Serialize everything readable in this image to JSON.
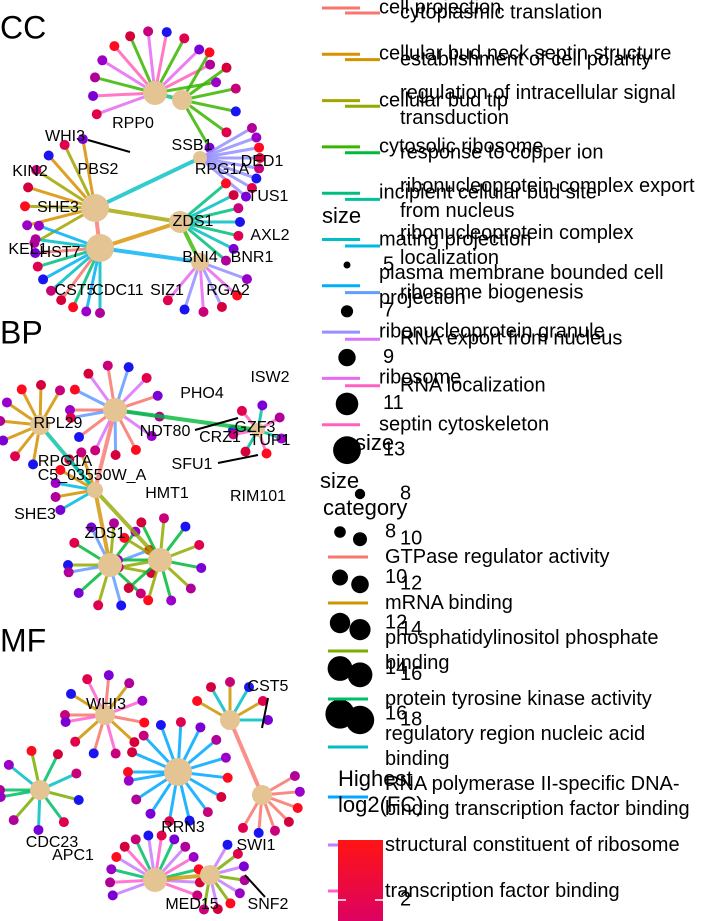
{
  "panels": [
    {
      "title": "CC",
      "gene_labels": [
        "WHI3",
        "RPP0",
        "SSB1",
        "RPG1A",
        "DED1",
        "KIN2",
        "PBS2",
        "SHE3",
        "TUS1",
        "ZDS1",
        "AXL2",
        "KEL1",
        "HST7",
        "BNI4",
        "BNR1",
        "CST5",
        "CDC11",
        "SIZ1",
        "RGA2"
      ],
      "categories": [
        "cell projection",
        "cellular bud neck septin structure",
        "cellular bud tip",
        "cytosolic ribosome",
        "incipient cellular bud site",
        "mating projection",
        "plasma membrane bounded cell projection",
        "ribonucleoprotein granule",
        "ribosome",
        "septin cytoskeleton"
      ],
      "colors": [
        "#F8766D",
        "#D89000",
        "#A3A500",
        "#39B600",
        "#00BF7D",
        "#00BFC4",
        "#00B0F6",
        "#9590FF",
        "#E76BF3",
        "#FF62BC"
      ],
      "size_legend": {
        "title": "size",
        "values": [
          5,
          7,
          9,
          11,
          13
        ]
      }
    },
    {
      "title": "BP",
      "gene_labels": [
        "RPL29",
        "PHO4",
        "ISW2",
        "NDT80",
        "GZF3",
        "CRZ1",
        "TUP1",
        "SFU1",
        "RPG1A",
        "C5_03550W_A",
        "HMT1",
        "RIM101",
        "SHE3",
        "ZDS1"
      ],
      "categories": [
        "cytoplasmic translation",
        "establishment of cell polarity",
        "regulation of intracellular signal transduction",
        "response to copper ion",
        "ribonucleoprotein complex export from nucleus",
        "ribonucleoprotein complex localization",
        "ribosome biogenesis",
        "RNA export from nucleus",
        "RNA localization"
      ],
      "colors": [
        "#F8766D",
        "#D39200",
        "#93AA00",
        "#00BA38",
        "#00C19F",
        "#00B9E3",
        "#619CFF",
        "#DB72FB",
        "#FF61C3"
      ],
      "size_legend": {
        "title": "size",
        "values": [
          8,
          10,
          12,
          14,
          16,
          18
        ]
      }
    },
    {
      "title": "MF",
      "gene_labels": [
        "WHI3",
        "CST5",
        "RRN3",
        "CDC23",
        "APC1",
        "SWI1",
        "MED15",
        "SNF2"
      ],
      "category_title": "category",
      "categories": [
        "GTPase regulator activity",
        "mRNA binding",
        "phosphatidylinositol phosphate binding",
        "protein tyrosine kinase activity",
        "regulatory region nucleic acid binding",
        "RNA polymerase II-specific DNA-binding transcription factor binding",
        "structural constituent of ribosome",
        "transcription factor binding"
      ],
      "colors": [
        "#F8766D",
        "#CD9600",
        "#7CAE00",
        "#00BE67",
        "#00BFC4",
        "#00A9FF",
        "#C77CFF",
        "#FF61CC"
      ],
      "size_legend": {
        "title": "size",
        "values": [
          8,
          10,
          12,
          14,
          16
        ]
      },
      "colorbar": {
        "title": "Highest log2(FC)",
        "ticks": [
          2
        ]
      }
    }
  ]
}
